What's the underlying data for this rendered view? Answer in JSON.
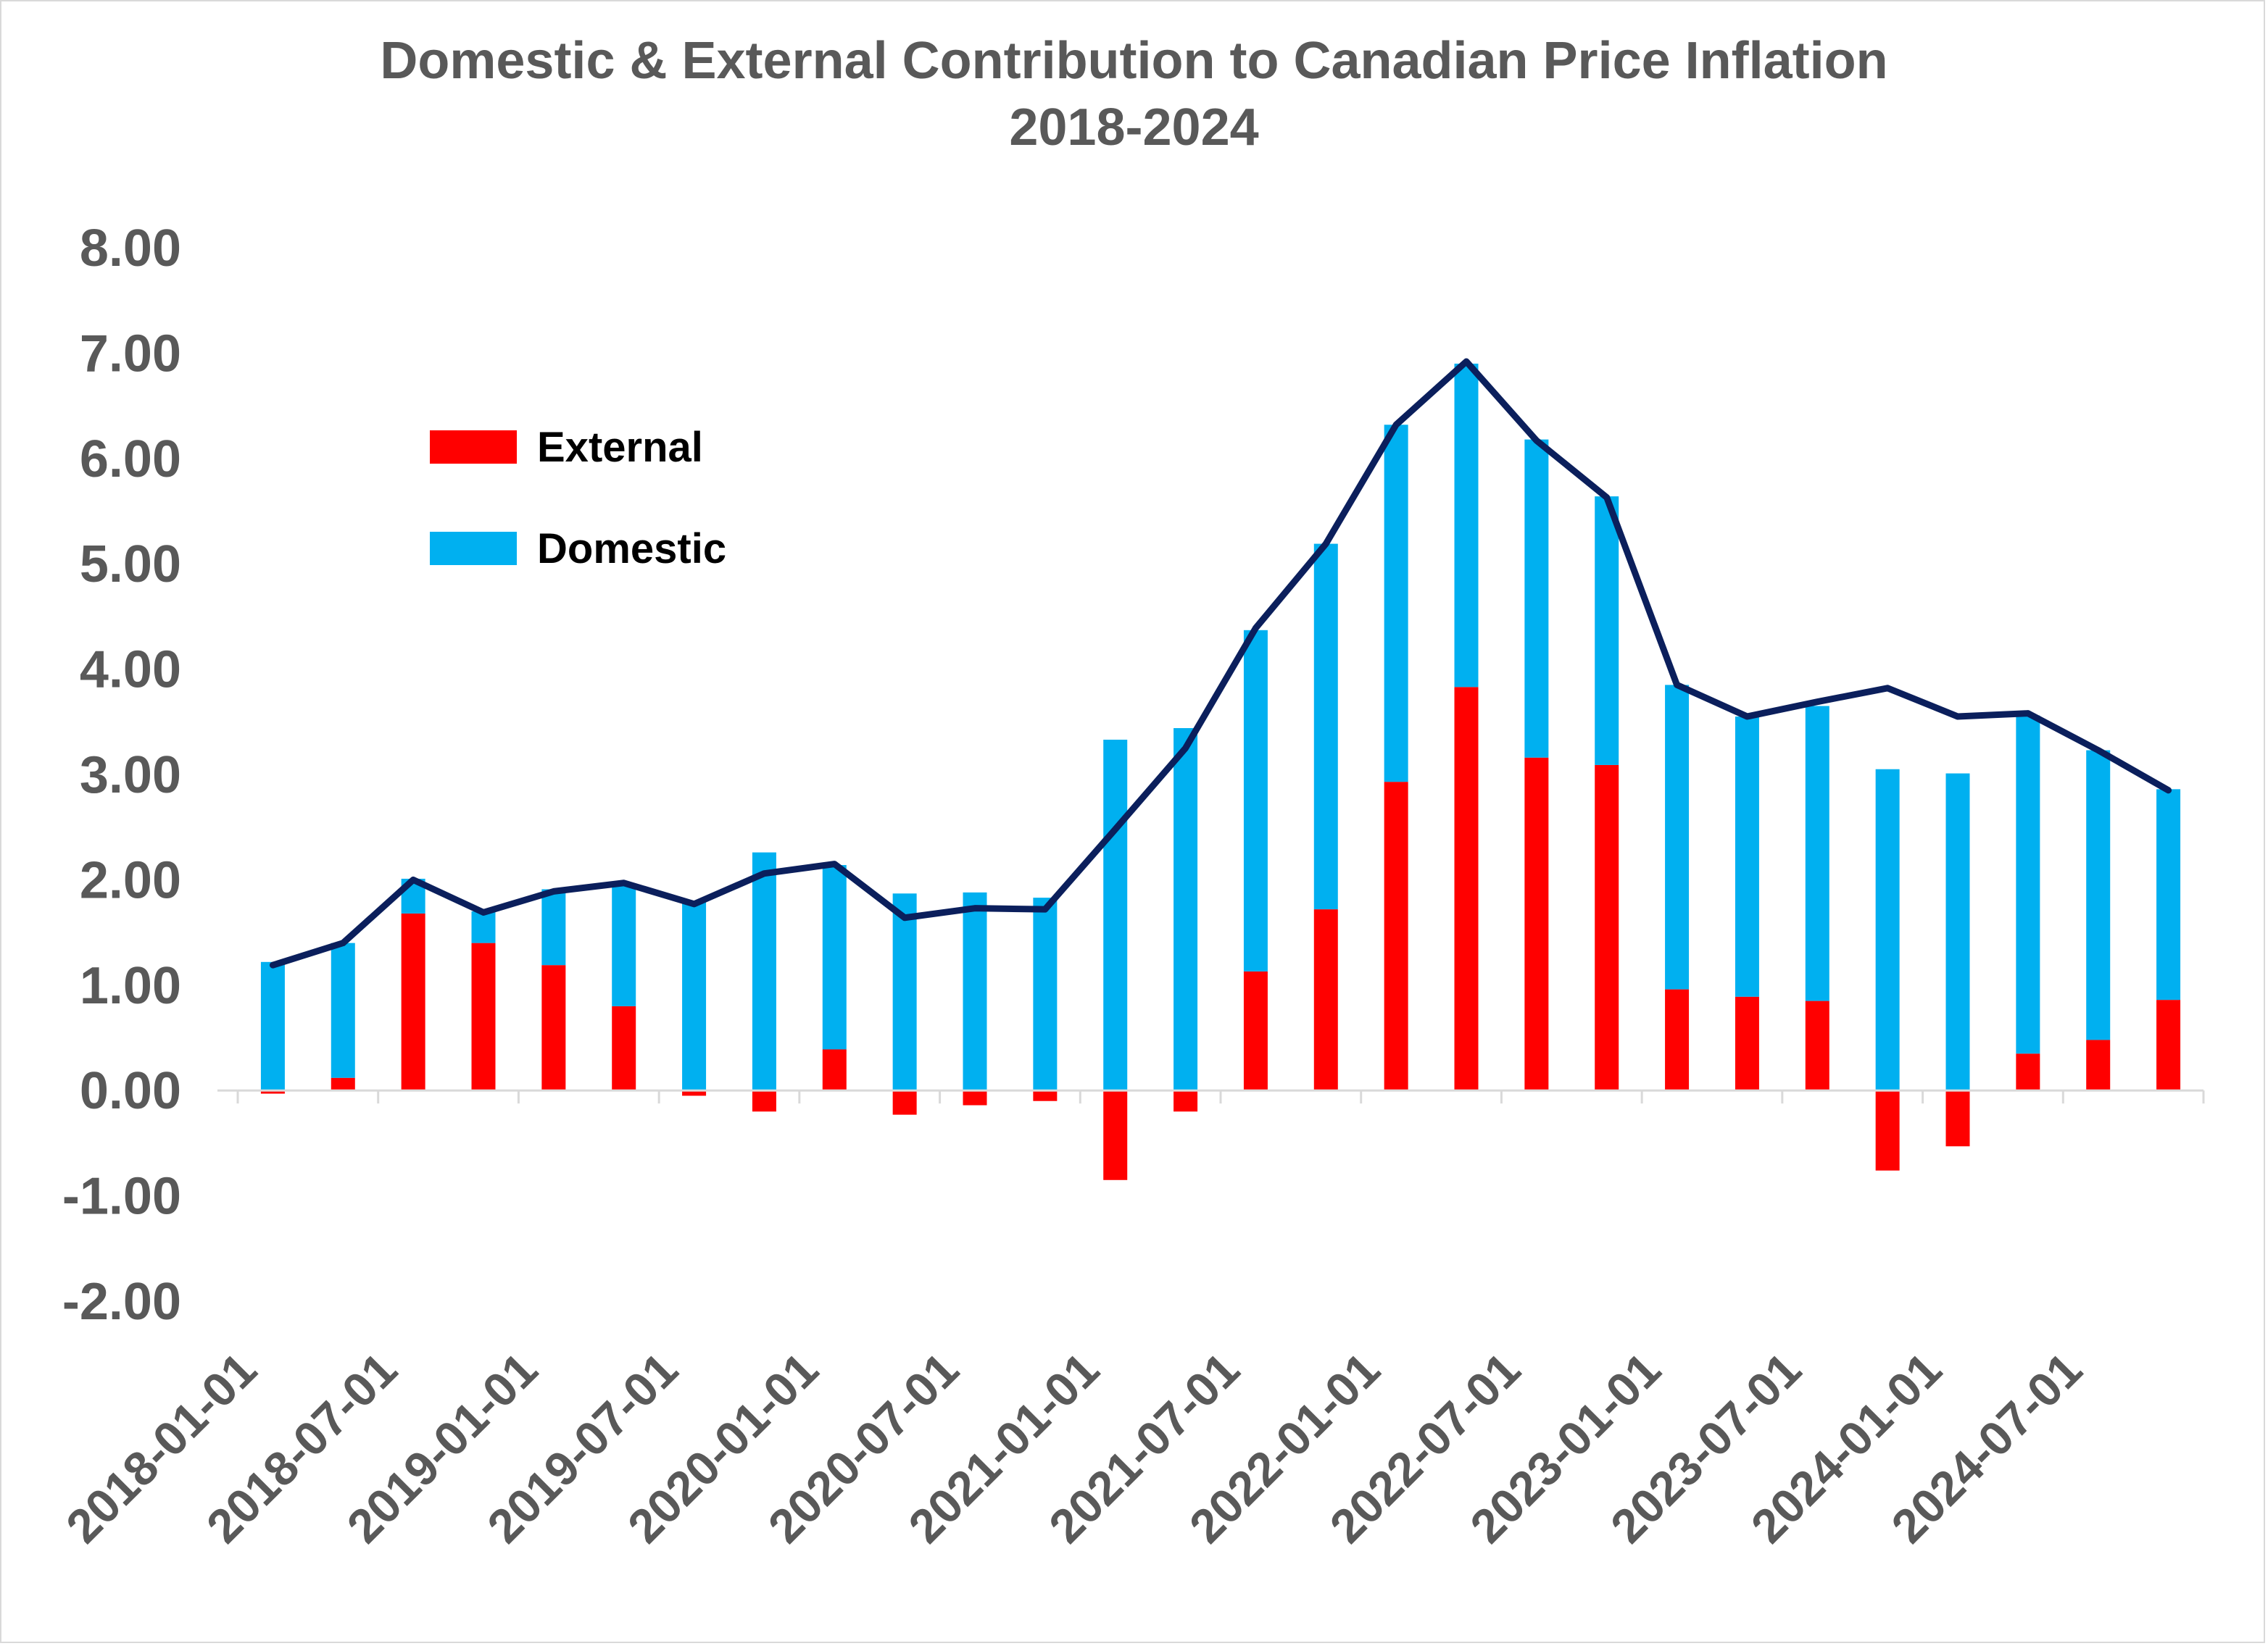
{
  "chart_data": {
    "type": "bar",
    "title": "Domestic & External Contribution to Canadian Price Inflation",
    "subtitle": "2018-2024",
    "xlabel": "",
    "ylabel": "",
    "ylim": [
      -2,
      8
    ],
    "y_ticks": [
      "-2.00",
      "-1.00",
      "0.00",
      "1.00",
      "2.00",
      "3.00",
      "4.00",
      "5.00",
      "6.00",
      "7.00",
      "8.00"
    ],
    "x_tick_labels": [
      "2018-01-01",
      "2018-07-01",
      "2019-01-01",
      "2019-07-01",
      "2020-01-01",
      "2020-07-01",
      "2021-01-01",
      "2021-07-01",
      "2022-01-01",
      "2022-07-01",
      "2023-01-01",
      "2023-07-01",
      "2024-01-01",
      "2024-07-01"
    ],
    "categories": [
      "2018-01-01",
      "2018-04-01",
      "2018-07-01",
      "2018-10-01",
      "2019-01-01",
      "2019-04-01",
      "2019-07-01",
      "2019-10-01",
      "2020-01-01",
      "2020-04-01",
      "2020-07-01",
      "2020-10-01",
      "2021-01-01",
      "2021-04-01",
      "2021-07-01",
      "2021-10-01",
      "2022-01-01",
      "2022-04-01",
      "2022-07-01",
      "2022-10-01",
      "2023-01-01",
      "2023-04-01",
      "2023-07-01",
      "2023-10-01",
      "2024-01-01",
      "2024-04-01",
      "2024-07-01",
      "2024-10-01"
    ],
    "stacked": true,
    "series": [
      {
        "name": "External",
        "kind": "bar",
        "color": "#ff0000",
        "values": [
          -0.03,
          0.12,
          1.68,
          1.4,
          1.19,
          0.8,
          -0.05,
          -0.2,
          0.39,
          -0.23,
          -0.14,
          -0.1,
          -0.85,
          -0.2,
          1.13,
          1.72,
          2.93,
          3.83,
          3.16,
          3.09,
          0.96,
          0.89,
          0.85,
          -0.76,
          -0.53,
          0.35,
          0.48,
          0.86
        ]
      },
      {
        "name": "Domestic",
        "kind": "bar",
        "color": "#00b0f0",
        "values": [
          1.22,
          1.28,
          0.33,
          0.3,
          0.72,
          1.15,
          1.8,
          2.26,
          1.75,
          1.87,
          1.88,
          1.83,
          3.33,
          3.44,
          3.24,
          3.47,
          3.39,
          3.07,
          3.02,
          2.55,
          2.89,
          2.66,
          2.8,
          3.05,
          3.01,
          3.21,
          2.75,
          2.0
        ]
      },
      {
        "kind": "line",
        "color": "#0b1f5c",
        "values": [
          1.19,
          1.4,
          2.0,
          1.69,
          1.89,
          1.97,
          1.77,
          2.06,
          2.15,
          1.64,
          1.73,
          1.72,
          2.48,
          3.25,
          4.39,
          5.19,
          6.32,
          6.92,
          6.17,
          5.63,
          3.85,
          3.55,
          3.69,
          3.82,
          3.55,
          3.58,
          3.23,
          2.85
        ]
      }
    ],
    "legend": [
      {
        "label": "External",
        "color": "#ff0000"
      },
      {
        "label": "Domestic",
        "color": "#00b0f0"
      }
    ],
    "legend_placement": "upper-left inside plot",
    "grid": false
  }
}
